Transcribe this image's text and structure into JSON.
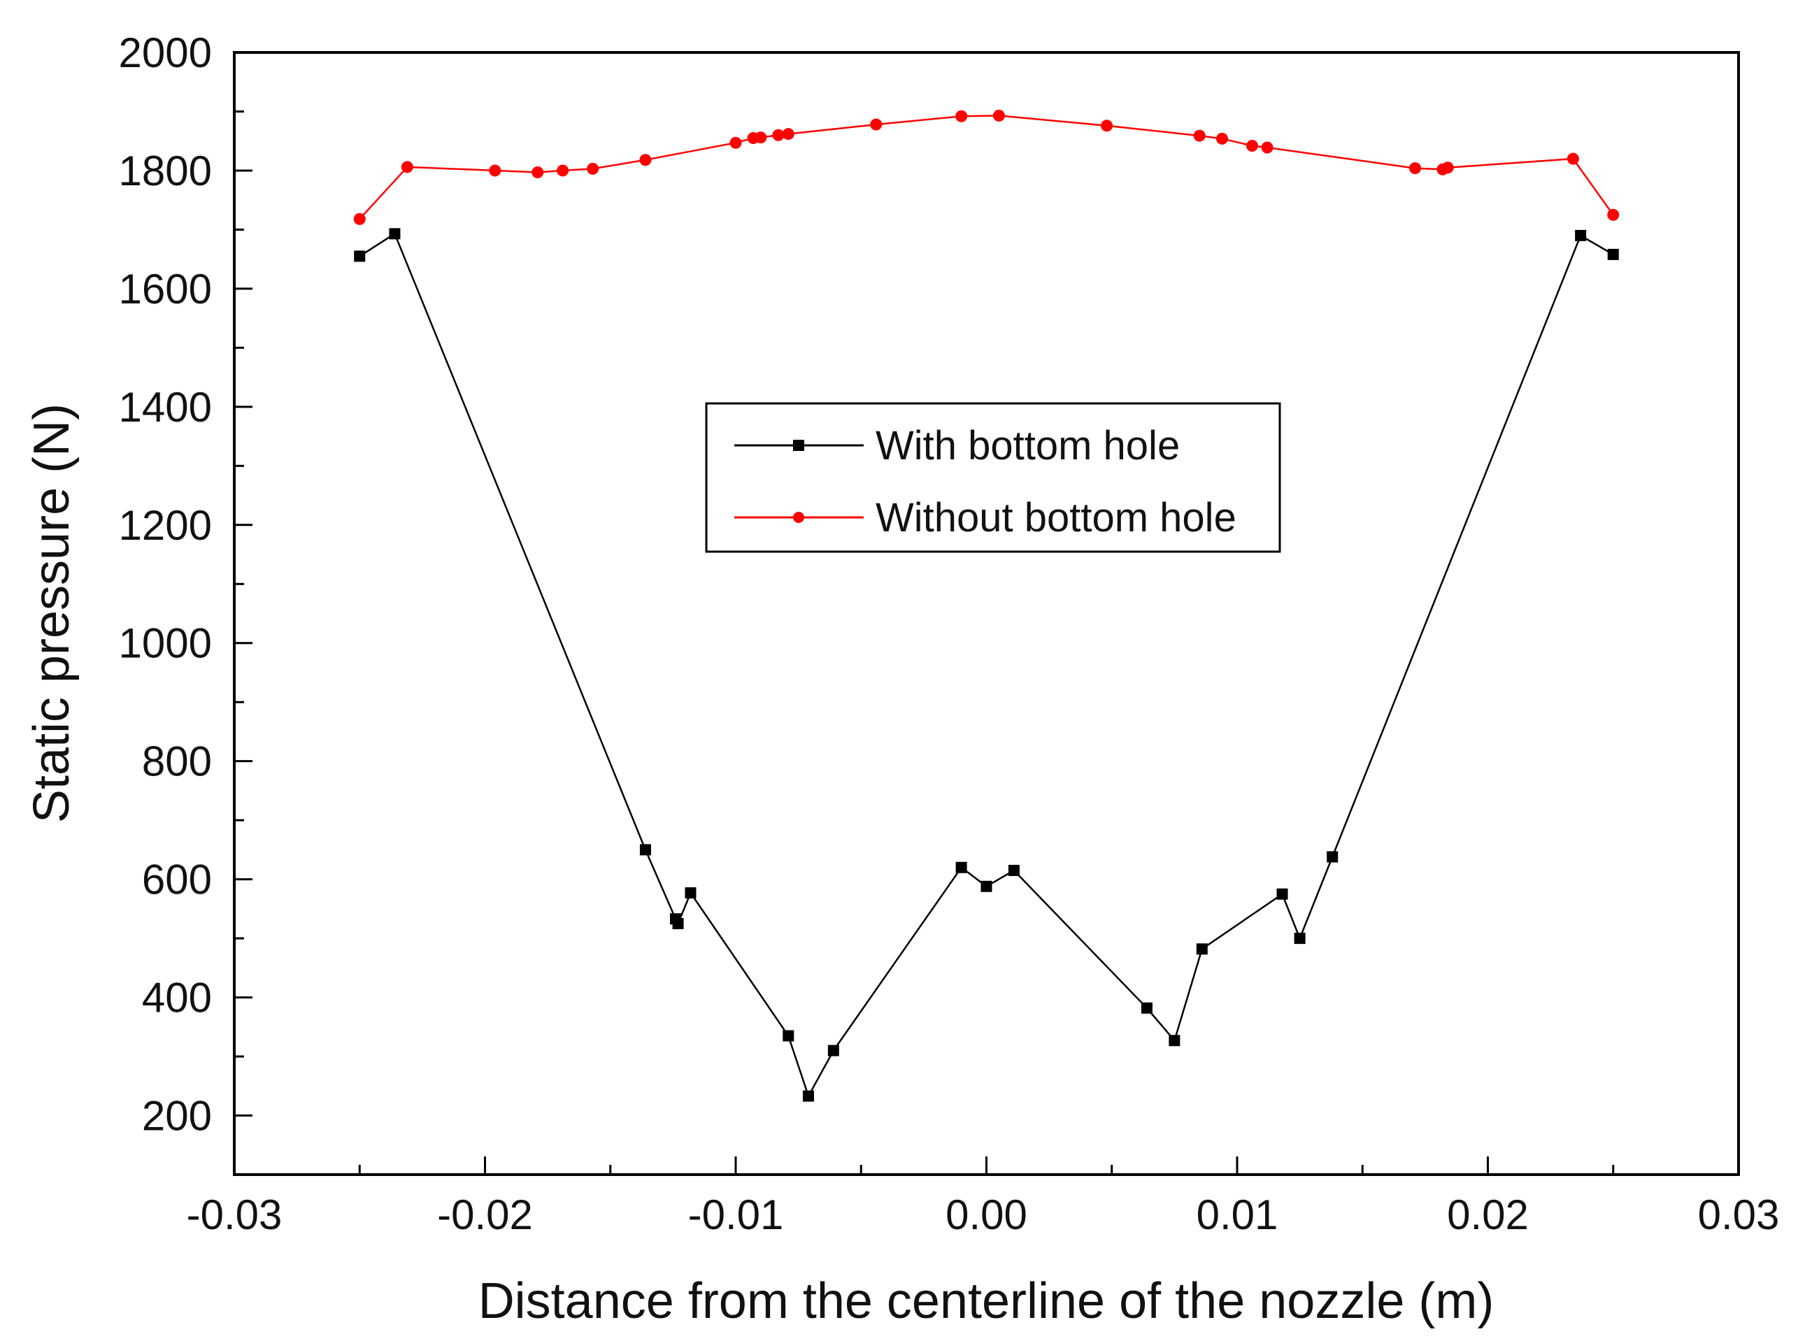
{
  "chart_data": {
    "type": "line",
    "title": "",
    "xlabel": "Distance from the centerline of the nozzle (m)",
    "ylabel": "Static pressure (N)",
    "xlim": [
      -0.03,
      0.03
    ],
    "ylim": [
      100,
      2000
    ],
    "x_ticks": [
      -0.03,
      -0.02,
      -0.01,
      0.0,
      0.01,
      0.02,
      0.03
    ],
    "x_tick_labels": [
      "-0.03",
      "-0.02",
      "-0.01",
      "0.00",
      "0.01",
      "0.02",
      "0.03"
    ],
    "y_ticks": [
      200,
      400,
      600,
      800,
      1000,
      1200,
      1400,
      1600,
      1800,
      2000
    ],
    "y_tick_labels": [
      "200",
      "400",
      "600",
      "800",
      "1000",
      "1200",
      "1400",
      "1600",
      "1800",
      "2000"
    ],
    "grid": false,
    "legend_position": "center",
    "series": [
      {
        "name": "With bottom hole",
        "color": "#000000",
        "marker": "square",
        "x": [
          -0.025,
          -0.0236,
          -0.0136,
          -0.0124,
          -0.0123,
          -0.0118,
          -0.0079,
          -0.0071,
          -0.0061,
          -0.001,
          0.0,
          0.0011,
          0.0064,
          0.0075,
          0.0086,
          0.0118,
          0.0125,
          0.0138,
          0.0237,
          0.025
        ],
        "y": [
          1655,
          1693,
          650,
          533,
          525,
          577,
          335,
          233,
          310,
          620,
          588,
          615,
          382,
          327,
          482,
          575,
          500,
          638,
          1690,
          1658
        ]
      },
      {
        "name": "Without bottom hole",
        "color": "#ff0000",
        "marker": "circle",
        "x": [
          -0.025,
          -0.0231,
          -0.0196,
          -0.0179,
          -0.0169,
          -0.0157,
          -0.0136,
          -0.01,
          -0.0093,
          -0.009,
          -0.0083,
          -0.0079,
          -0.0044,
          -0.001,
          0.0005,
          0.0048,
          0.0085,
          0.0094,
          0.0106,
          0.0112,
          0.0171,
          0.0182,
          0.0184,
          0.0234,
          0.025
        ],
        "y": [
          1718,
          1806,
          1800,
          1797,
          1800,
          1803,
          1818,
          1847,
          1855,
          1856,
          1860,
          1862,
          1878,
          1892,
          1893,
          1876,
          1859,
          1854,
          1842,
          1839,
          1804,
          1802,
          1805,
          1820,
          1725
        ]
      }
    ]
  }
}
